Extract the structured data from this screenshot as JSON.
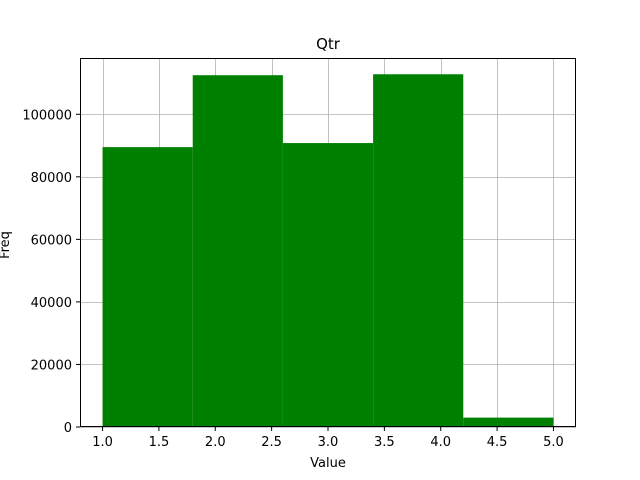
{
  "chart_data": {
    "type": "histogram",
    "title": "Qtr",
    "xlabel": "Value",
    "ylabel": "Freq",
    "bin_edges": [
      1.0,
      1.8,
      2.6,
      3.4,
      4.2,
      5.0
    ],
    "values": [
      89500,
      112500,
      90800,
      112800,
      3000
    ],
    "xlim": [
      0.8,
      5.2
    ],
    "ylim": [
      0,
      118000
    ],
    "x_ticks": [
      1.0,
      1.5,
      2.0,
      2.5,
      3.0,
      3.5,
      4.0,
      4.5,
      5.0
    ],
    "x_tick_labels": [
      "1.0",
      "1.5",
      "2.0",
      "2.5",
      "3.0",
      "3.5",
      "4.0",
      "4.5",
      "5.0"
    ],
    "y_ticks": [
      0,
      20000,
      40000,
      60000,
      80000,
      100000
    ],
    "y_tick_labels": [
      "0",
      "20000",
      "40000",
      "60000",
      "80000",
      "100000"
    ],
    "grid": true,
    "bar_color": "#008000",
    "grid_color": "#b0b0b0",
    "axis_color": "#000000"
  }
}
